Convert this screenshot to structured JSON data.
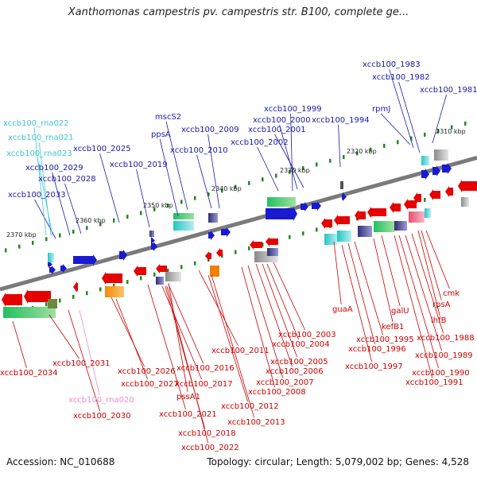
{
  "title": "Xanthomonas campestris pv. campestris str. B100, complete ge...",
  "footer": {
    "accession": "Accession: NC_010688",
    "summary": "Topology: circular; Length: 5,079,002 bp; Genes: 4,528"
  },
  "colors": {
    "backbone": "#7a7a7a",
    "tick": "#1f8a1f",
    "label_forward": "#1a1aa8",
    "label_reverse": "#cc0000",
    "label_rna_forward": "#3ec6d6",
    "label_rna_reverse": "#f08cc8",
    "gene_forward": "#1a1ad0",
    "gene_reverse": "#e60000"
  },
  "scale_labels": [
    "2310 kbp",
    "2320 kbp",
    "2330 kbp",
    "2340 kbp",
    "2350 kbp",
    "2360 kbp",
    "2370 kbp"
  ],
  "forward_labels": [
    "xccb100_1983",
    "xccb100_1982",
    "xccb100_1981",
    "rpmJ",
    "xccb100_1999",
    "xccb100_2000",
    "xccb100_2001",
    "xccb100_1994",
    "xccb100_2002",
    "mscS2",
    "ppsA",
    "xccb100_2009",
    "xccb100_2010",
    "xccb100_2025",
    "xccb100_2019",
    "xccb100_2029",
    "xccb100_2028",
    "xccb100_2033"
  ],
  "rna_forward_labels": [
    "xccb100_rna022",
    "xccb100_rna021",
    "xccb100_rna023"
  ],
  "reverse_labels": [
    "cmk",
    "rpsA",
    "ihfB",
    "xccb100_1988",
    "xccb100_1989",
    "xccb100_1990",
    "xccb100_1991",
    "galU",
    "kefB1",
    "guaA",
    "xccb100_1995",
    "xccb100_1996",
    "xccb100_1997",
    "xccb100_2003",
    "xccb100_2004",
    "xccb100_2005",
    "xccb100_2006",
    "xccb100_2007",
    "xccb100_2008",
    "xccb100_2011",
    "xccb100_2012",
    "xccb100_2013",
    "xccb100_2016",
    "xccb100_2017",
    "xccb100_2026",
    "xccb100_2027",
    "pssA1",
    "xccb100_2021",
    "xccb100_2018",
    "xccb100_2022",
    "xccb100_2031",
    "xccb100_2034",
    "xccb100_2030"
  ],
  "rna_reverse_labels": [
    "xccb100_rna020"
  ],
  "icons": {
    "forward_gene": "right-arrow",
    "reverse_gene": "left-arrow"
  }
}
